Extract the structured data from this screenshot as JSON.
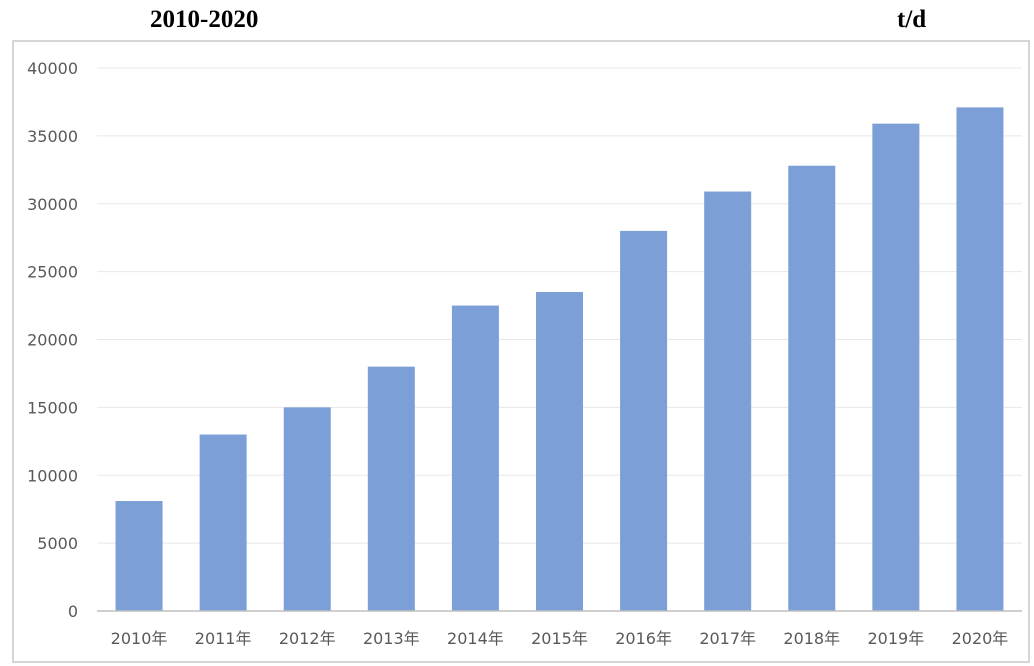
{
  "header": {
    "title": "2010-2020",
    "unit": "t/d"
  },
  "chart_data": {
    "type": "bar",
    "categories": [
      "2010年",
      "2011年",
      "2012年",
      "2013年",
      "2014年",
      "2015年",
      "2016年",
      "2017年",
      "2018年",
      "2019年",
      "2020年"
    ],
    "values": [
      8100,
      13000,
      15000,
      18000,
      22500,
      23500,
      28000,
      30900,
      32800,
      35900,
      37100
    ],
    "title": "2010-2020",
    "ylabel": "t/d",
    "xlabel": "",
    "ylim": [
      0,
      40000
    ],
    "yticks": [
      0,
      5000,
      10000,
      15000,
      20000,
      25000,
      30000,
      35000,
      40000
    ],
    "grid": true,
    "legend": "none",
    "bar_color": "#7b9fd6",
    "grid_color": "#e8e8e8",
    "axis_color": "#bfbfbf"
  }
}
